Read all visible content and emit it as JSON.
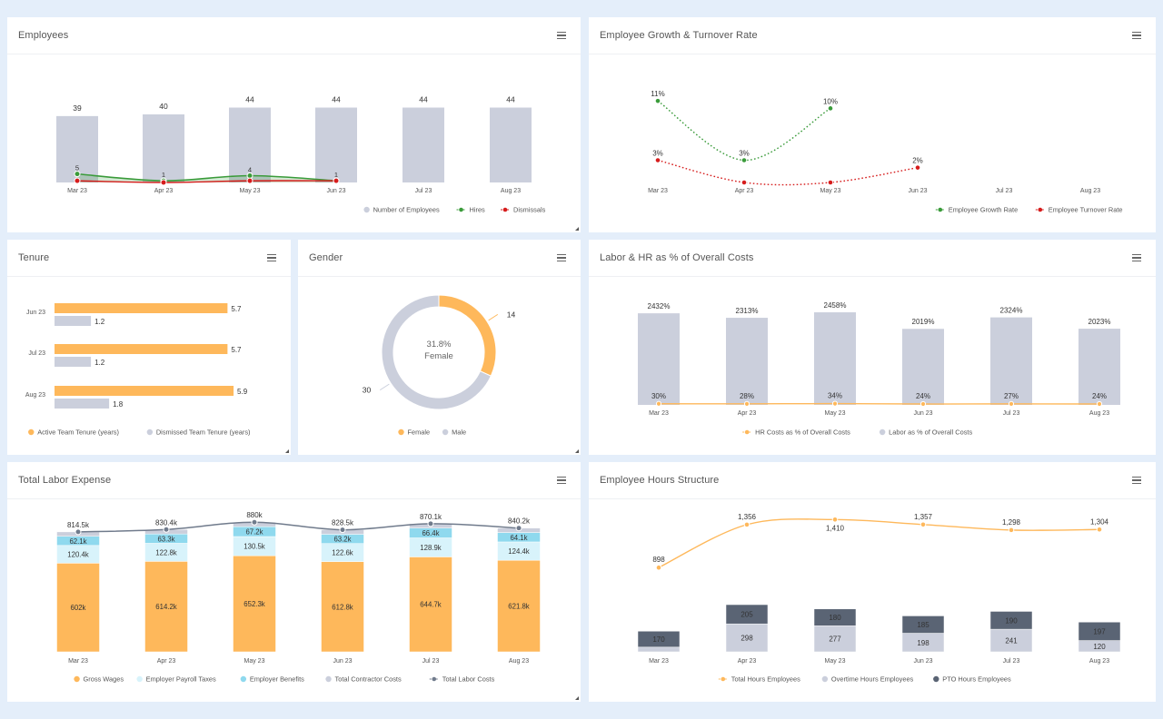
{
  "months": [
    "Mar 23",
    "Apr 23",
    "May 23",
    "Jun 23",
    "Jul 23",
    "Aug 23"
  ],
  "colors": {
    "bar_gray": "#cbcfdc",
    "orange": "#feb85b",
    "green": "#3a9b3a",
    "red": "#d61c1c",
    "light_blue": "#d8f3fb",
    "blue": "#8fd9ee",
    "dark_slate": "#5a6474",
    "line_slate": "#707b8c"
  },
  "panels": {
    "employees": {
      "title": "Employees",
      "chart_data": {
        "type": "bar",
        "categories": [
          "Mar 23",
          "Apr 23",
          "May 23",
          "Jun 23",
          "Jul 23",
          "Aug 23"
        ],
        "series": [
          {
            "name": "Number of Employees",
            "type": "bar",
            "values": [
              39,
              40,
              44,
              44,
              44,
              44
            ]
          },
          {
            "name": "Hires",
            "type": "area-line",
            "values": [
              5,
              1,
              4,
              1,
              null,
              null
            ]
          },
          {
            "name": "Dismissals",
            "type": "line",
            "values": [
              1,
              0,
              1,
              1,
              null,
              null
            ]
          }
        ],
        "ylim": [
          0,
          48
        ],
        "legend": [
          "Number of Employees",
          "Hires",
          "Dismissals"
        ],
        "legend_position": "bottom-right"
      }
    },
    "growth": {
      "title": "Employee Growth & Turnover Rate",
      "chart_data": {
        "type": "line",
        "categories": [
          "Mar 23",
          "Apr 23",
          "May 23",
          "Jun 23",
          "Jul 23",
          "Aug 23"
        ],
        "series": [
          {
            "name": "Employee Growth Rate",
            "values": [
              11,
              3,
              10,
              null,
              null,
              null
            ],
            "labels": [
              "11%",
              "3%",
              "10%",
              "",
              "",
              ""
            ]
          },
          {
            "name": "Employee Turnover Rate",
            "values": [
              3,
              0,
              0,
              2,
              null,
              null
            ],
            "labels": [
              "3%",
              "",
              "",
              "2%",
              "",
              ""
            ]
          }
        ],
        "ylim": [
          0,
          12
        ],
        "legend": [
          "Employee Growth Rate",
          "Employee Turnover Rate"
        ],
        "legend_position": "bottom-right"
      }
    },
    "tenure": {
      "title": "Tenure",
      "chart_data": {
        "type": "bar",
        "orientation": "horizontal",
        "categories": [
          "Jun 23",
          "Jul 23",
          "Aug 23"
        ],
        "series": [
          {
            "name": "Active Team Tenure (years)",
            "values": [
              5.7,
              5.7,
              5.9
            ]
          },
          {
            "name": "Dismissed Team Tenure (years)",
            "values": [
              1.2,
              1.2,
              1.8
            ]
          }
        ],
        "xlim": [
          0,
          6.2
        ],
        "legend": [
          "Active Team Tenure (years)",
          "Dismissed Team Tenure (years)"
        ],
        "legend_position": "bottom"
      }
    },
    "gender": {
      "title": "Gender",
      "chart_data": {
        "type": "pie",
        "donut": true,
        "slices": [
          {
            "name": "Female",
            "value": 14
          },
          {
            "name": "Male",
            "value": 30
          }
        ],
        "center_pct": "31.8%",
        "center_label": "Female",
        "legend": [
          "Female",
          "Male"
        ],
        "legend_position": "bottom"
      }
    },
    "labor_hr": {
      "title": "Labor & HR as % of Overall Costs",
      "chart_data": {
        "type": "bar",
        "categories": [
          "Mar 23",
          "Apr 23",
          "May 23",
          "Jun 23",
          "Jul 23",
          "Aug 23"
        ],
        "series": [
          {
            "name": "Labor as % of Overall Costs",
            "type": "bar",
            "values": [
              2432,
              2313,
              2458,
              2019,
              2324,
              2023
            ],
            "labels": [
              "2432%",
              "2313%",
              "2458%",
              "2019%",
              "2324%",
              "2023%"
            ]
          },
          {
            "name": "HR Costs as % of Overall Costs",
            "type": "line",
            "values": [
              30,
              28,
              34,
              24,
              27,
              24
            ],
            "labels": [
              "30%",
              "28%",
              "34%",
              "24%",
              "27%",
              "24%"
            ]
          }
        ],
        "ylim": [
          0,
          2700
        ],
        "legend": [
          "HR Costs as % of Overall Costs",
          "Labor as % of Overall Costs"
        ],
        "legend_position": "bottom"
      }
    },
    "labor_expense": {
      "title": "Total Labor Expense",
      "chart_data": {
        "type": "bar",
        "stacked": true,
        "categories": [
          "Mar 23",
          "Apr 23",
          "May 23",
          "Jun 23",
          "Jul 23",
          "Aug 23"
        ],
        "series": [
          {
            "name": "Gross Wages",
            "values": [
              602,
              614.2,
              652.3,
              612.8,
              644.7,
              621.8
            ],
            "labels": [
              "602k",
              "614.2k",
              "652.3k",
              "612.8k",
              "644.7k",
              "621.8k"
            ]
          },
          {
            "name": "Employer Payroll Taxes",
            "values": [
              120.4,
              122.8,
              130.5,
              122.6,
              128.9,
              124.4
            ],
            "labels": [
              "120.4k",
              "122.8k",
              "130.5k",
              "122.6k",
              "128.9k",
              "124.4k"
            ]
          },
          {
            "name": "Employer Benefits",
            "values": [
              62.1,
              63.3,
              67.2,
              63.2,
              66.4,
              64.1
            ],
            "labels": [
              "62.1k",
              "63.3k",
              "67.2k",
              "63.2k",
              "66.4k",
              "64.1k"
            ]
          },
          {
            "name": "Total Contractor Costs",
            "values": [
              30,
              30,
              30,
              30,
              30,
              30
            ]
          },
          {
            "name": "Total Labor Costs",
            "type": "line",
            "values": [
              814.5,
              830.4,
              880,
              828.5,
              870.1,
              840.2
            ],
            "labels": [
              "814.5k",
              "830.4k",
              "880k",
              "828.5k",
              "870.1k",
              "840.2k"
            ]
          }
        ],
        "ylim": [
          0,
          900
        ],
        "legend": [
          "Gross Wages",
          "Employer Payroll Taxes",
          "Employer Benefits",
          "Total Contractor Costs",
          "Total Labor Costs"
        ],
        "legend_position": "bottom"
      }
    },
    "hours": {
      "title": "Employee Hours Structure",
      "chart_data": {
        "type": "bar",
        "stacked": true,
        "categories": [
          "Mar 23",
          "Apr 23",
          "May 23",
          "Jun 23",
          "Jul 23",
          "Aug 23"
        ],
        "series": [
          {
            "name": "Overtime Hours Employees",
            "values": [
              50,
              298,
              277,
              198,
              241,
              120
            ],
            "labels": [
              "",
              "298",
              "277",
              "198",
              "241",
              "120"
            ]
          },
          {
            "name": "PTO Hours Employees",
            "values": [
              170,
              205,
              180,
              185,
              190,
              197
            ],
            "labels": [
              "170",
              "205",
              "180",
              "185",
              "190",
              "197"
            ]
          },
          {
            "name": "Total Hours Employees",
            "type": "line",
            "values": [
              898,
              1356,
              1410,
              1357,
              1298,
              1304
            ],
            "labels": [
              "898",
              "1,356",
              "1,410",
              "1,357",
              "1,298",
              "1,304"
            ]
          }
        ],
        "ylim": [
          0,
          1500
        ],
        "legend": [
          "Total Hours Employees",
          "Overtime Hours Employees",
          "PTO Hours Employees"
        ],
        "legend_position": "bottom"
      }
    }
  }
}
